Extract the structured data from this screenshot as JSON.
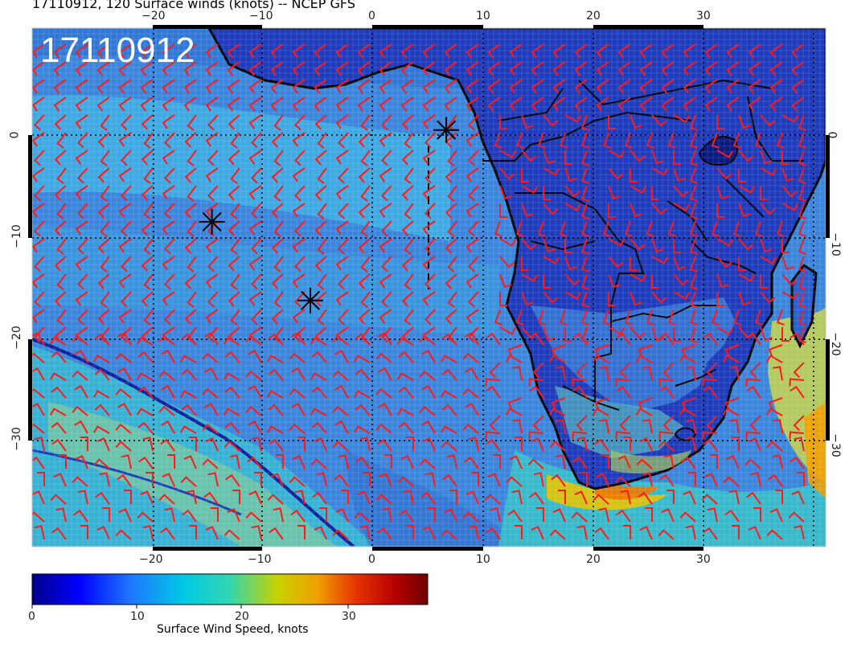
{
  "title": "17110912, 120 Surface winds (knots) -- NCEP GFS",
  "stamp": "17110912",
  "axes": {
    "lon_ticks": [
      "−20",
      "−10",
      "0",
      "10",
      "20",
      "30"
    ],
    "lat_ticks": [
      "0",
      "−10",
      "−20",
      "−30"
    ]
  },
  "colorbar": {
    "title": "Surface Wind Speed, knots",
    "ticks": [
      "0",
      "10",
      "20",
      "30"
    ],
    "colors": [
      "#00008b",
      "#0000ff",
      "#1e78ff",
      "#00c8e6",
      "#33d6b0",
      "#c8d200",
      "#f0a000",
      "#e63200",
      "#b40000",
      "#6e0000"
    ]
  },
  "markers": [
    {
      "name": "storm-marker-1",
      "lon": 6.7,
      "lat": 0.5
    },
    {
      "name": "storm-marker-2",
      "lon": -14.5,
      "lat": -8.5
    },
    {
      "name": "storm-marker-3",
      "lon": -5.6,
      "lat": -16.2
    }
  ],
  "barb_color": "#ff1a1a",
  "land_color": "#1e32b4",
  "ocean_color": "#3f8fe0"
}
